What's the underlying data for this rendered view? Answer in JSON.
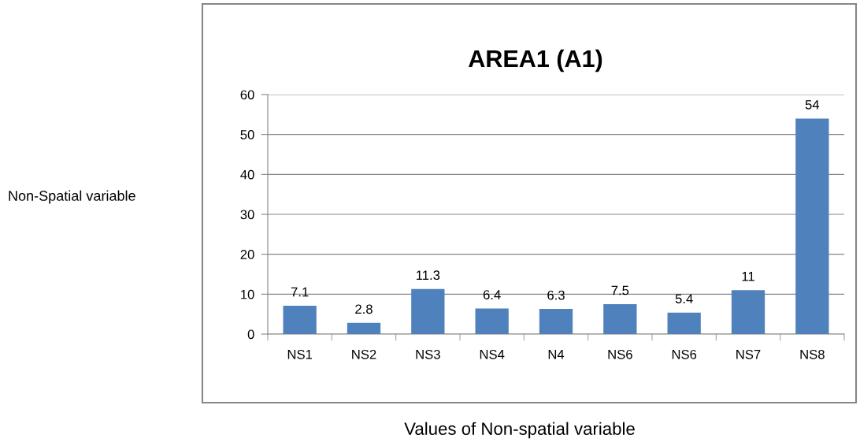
{
  "chart_data": {
    "type": "bar",
    "title": "AREA1 (A1)",
    "xlabel": "Values of Non-spatial variable",
    "annotations": [
      "Non-Spatial variable"
    ],
    "categories": [
      "NS1",
      "NS2",
      "NS3",
      "NS4",
      "N4",
      "NS6",
      "NS6",
      "NS7",
      "NS8"
    ],
    "values": [
      7.1,
      2.8,
      11.3,
      6.4,
      6.3,
      7.5,
      5.4,
      11,
      54
    ],
    "color": "#4f81bd",
    "ylim": [
      0,
      60
    ],
    "yticks": [
      0,
      10,
      20,
      30,
      40,
      50,
      60
    ],
    "grid": "y",
    "data_labels": true
  }
}
